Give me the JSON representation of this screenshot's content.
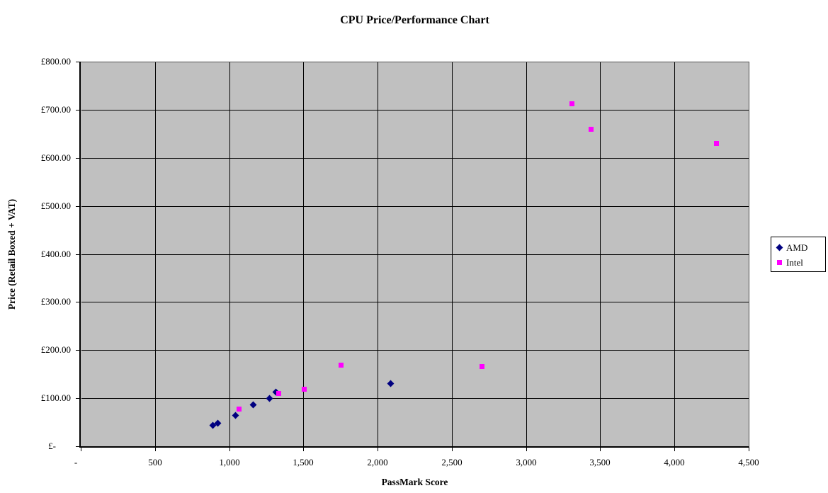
{
  "chart_data": {
    "type": "scatter",
    "title": "CPU Price/Performance Chart",
    "xlabel": "PassMark Score",
    "ylabel": "Price (Retail Boxed + VAT)",
    "xlim": [
      0,
      4500
    ],
    "xtick_step": 500,
    "x_tick_labels": [
      "-",
      "500",
      "1,000",
      "1,500",
      "2,000",
      "2,500",
      "3,000",
      "3,500",
      "4,000",
      "4,500"
    ],
    "ylim": [
      0,
      800
    ],
    "ytick_step": 100,
    "y_tick_labels": [
      "£-",
      "£100.00",
      "£200.00",
      "£300.00",
      "£400.00",
      "£500.00",
      "£600.00",
      "£700.00",
      "£800.00"
    ],
    "grid": "on",
    "legend_position": "right-outside",
    "plot_bg_color": "#C0C0C0",
    "gridline_color": "#000000",
    "series": [
      {
        "name": "AMD",
        "marker": "diamond",
        "color": "#000080",
        "points": [
          [
            890,
            43
          ],
          [
            925,
            48
          ],
          [
            1045,
            64
          ],
          [
            1160,
            86
          ],
          [
            1270,
            100
          ],
          [
            1315,
            113
          ],
          [
            2090,
            130
          ]
        ]
      },
      {
        "name": "Intel",
        "marker": "square",
        "color": "#FF00FF",
        "points": [
          [
            1065,
            78
          ],
          [
            1335,
            110
          ],
          [
            1505,
            118
          ],
          [
            1755,
            168
          ],
          [
            2705,
            166
          ],
          [
            3310,
            712
          ],
          [
            3440,
            660
          ],
          [
            4285,
            630
          ]
        ]
      }
    ]
  }
}
